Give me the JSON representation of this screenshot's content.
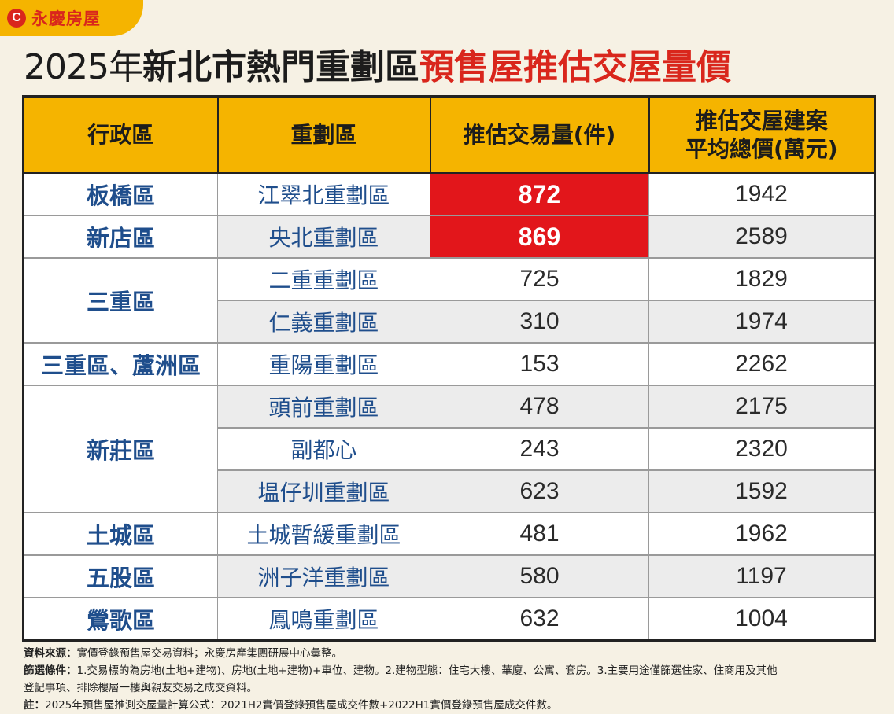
{
  "brand": {
    "mark": "C",
    "name": "永慶房屋"
  },
  "title": {
    "year": "2025年",
    "part_black": "新北市熱門重劃區",
    "part_red": "預售屋推估交屋量價"
  },
  "chart_data": {
    "type": "table",
    "columns": [
      "行政區",
      "重劃區",
      "推估交易量(件)",
      "推估交屋建案平均總價(萬元)"
    ],
    "header_lines": {
      "col4_line1": "推估交屋建案",
      "col4_line2": "平均總價(萬元)"
    },
    "rows": [
      {
        "district": "板橋區",
        "zone": "江翠北重劃區",
        "volume": 872,
        "avg_price": 1942
      },
      {
        "district": "新店區",
        "zone": "央北重劃區",
        "volume": 869,
        "avg_price": 2589
      },
      {
        "district": "三重區",
        "zone": "二重重劃區",
        "volume": 725,
        "avg_price": 1829
      },
      {
        "district": "三重區",
        "zone": "仁義重劃區",
        "volume": 310,
        "avg_price": 1974
      },
      {
        "district": "三重區、蘆洲區",
        "zone": "重陽重劃區",
        "volume": 153,
        "avg_price": 2262
      },
      {
        "district": "新莊區",
        "zone": "頭前重劃區",
        "volume": 478,
        "avg_price": 2175
      },
      {
        "district": "新莊區",
        "zone": "副都心",
        "volume": 243,
        "avg_price": 2320
      },
      {
        "district": "新莊區",
        "zone": "塭仔圳重劃區",
        "volume": 623,
        "avg_price": 1592
      },
      {
        "district": "土城區",
        "zone": "土城暫緩重劃區",
        "volume": 481,
        "avg_price": 1962
      },
      {
        "district": "五股區",
        "zone": "洲子洋重劃區",
        "volume": 580,
        "avg_price": 1197
      },
      {
        "district": "鶯歌區",
        "zone": "鳳鳴重劃區",
        "volume": 632,
        "avg_price": 1004
      }
    ],
    "highlighted_volume_rows": [
      0,
      1
    ]
  },
  "colors": {
    "header_bg": "#f5b400",
    "highlight_red": "#e2161b",
    "district_blue": "#1f4e8c",
    "title_red": "#d9261c"
  },
  "notes": {
    "source_label": "資料來源：",
    "source_text": "實價登錄預售屋交易資料；永慶房產集團研展中心彙整。",
    "filter_label": "篩選條件：",
    "filter_text": "1.交易標的為房地(土地+建物)、房地(土地+建物)+車位、建物。2.建物型態：住宅大樓、華廈、公寓、套房。3.主要用途僅篩選住家、住商用及其他",
    "filter_text_2": "登記事項、排除樓層一樓與親友交易之成交資料。",
    "note_label": "註：",
    "note_text": "2025年預售屋推測交屋量計算公式：2021H2實價登錄預售屋成交件數+2022H1實價登錄預售屋成交件數。"
  }
}
